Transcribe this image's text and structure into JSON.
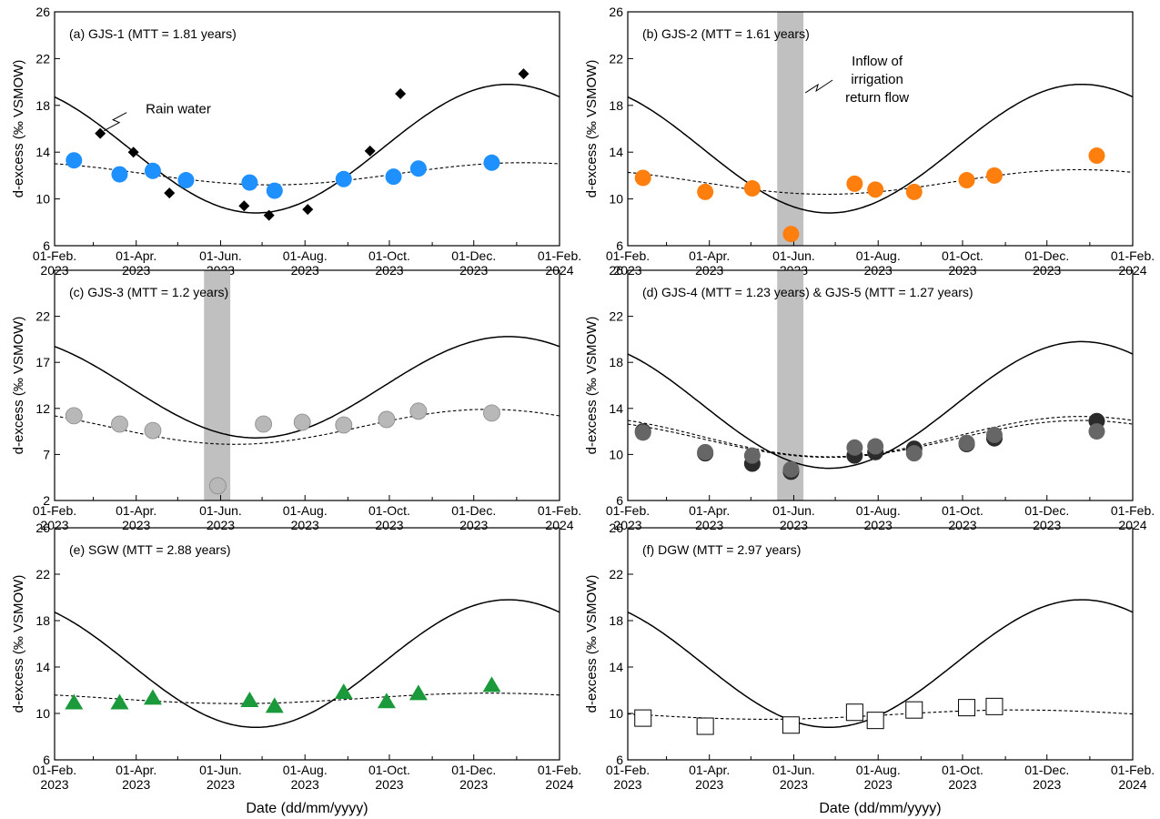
{
  "figure": {
    "shared_xlabel": "Date (dd/mm/yyyy)",
    "x_tick_labels": [
      [
        "01-Feb.",
        "2023"
      ],
      [
        "01-Apr.",
        "2023"
      ],
      [
        "01-Jun.",
        "2023"
      ],
      [
        "01-Aug.",
        "2023"
      ],
      [
        "01-Oct.",
        "2023"
      ],
      [
        "01-Dec.",
        "2023"
      ],
      [
        "01-Feb.",
        "2024"
      ]
    ],
    "ylabel": "d-excess (‰ VSMOW)",
    "rain_water_label": "Rain water",
    "inflow_label_lines": [
      "Inflow of",
      "irrigation",
      "return flow"
    ]
  },
  "chart_data": [
    {
      "type": "scatter",
      "title": "(a) GJS-1 (MTT = 1.81 years)",
      "xlabel": "",
      "ylabel": "d-excess (‰ VSMOW)",
      "xlim": [
        "2023-02-01",
        "2024-02-01"
      ],
      "ylim": [
        6,
        26
      ],
      "yticks": [
        6,
        10,
        14,
        18,
        22,
        26
      ],
      "annotation": "Rain water",
      "series": [
        {
          "marker": "diamond",
          "color": "#000000",
          "points": [
            [
              "2023-03-06",
              15.6
            ],
            [
              "2023-03-30",
              14.0
            ],
            [
              "2023-04-25",
              10.5
            ],
            [
              "2023-06-18",
              9.4
            ],
            [
              "2023-07-06",
              8.6
            ],
            [
              "2023-08-03",
              9.1
            ],
            [
              "2023-09-17",
              14.1
            ],
            [
              "2023-10-09",
              19.0
            ],
            [
              "2024-01-06",
              20.7
            ]
          ]
        },
        {
          "marker": "circle",
          "color": "#1e90ff",
          "points": [
            [
              "2023-02-15",
              13.3
            ],
            [
              "2023-03-20",
              12.1
            ],
            [
              "2023-04-13",
              12.4
            ],
            [
              "2023-05-07",
              11.6
            ],
            [
              "2023-06-22",
              11.4
            ],
            [
              "2023-07-10",
              10.7
            ],
            [
              "2023-08-29",
              11.7
            ],
            [
              "2023-10-04",
              11.9
            ],
            [
              "2023-10-22",
              12.6
            ],
            [
              "2023-12-14",
              13.1
            ]
          ]
        }
      ],
      "lines": [
        {
          "style": "solid",
          "mean": 14.3,
          "amplitude": 5.5,
          "peak": "2023-12-26"
        },
        {
          "style": "dashed",
          "mean": 12.15,
          "amplitude": 0.95,
          "peak": "2024-01-06"
        }
      ]
    },
    {
      "type": "scatter",
      "title": "(b) GJS-2 (MTT = 1.61 years)",
      "xlabel": "",
      "ylabel": "d-excess (‰ VSMOW)",
      "xlim": [
        "2023-02-01",
        "2024-02-01"
      ],
      "ylim": [
        6,
        26
      ],
      "yticks": [
        6,
        10,
        14,
        18,
        22,
        26
      ],
      "annotation": [
        "Inflow of",
        "irrigation",
        "return flow"
      ],
      "shaded_band": [
        "2023-05-20",
        "2023-06-08"
      ],
      "series": [
        {
          "marker": "circle",
          "color": "#ff7f0e",
          "points": [
            [
              "2023-02-12",
              11.8
            ],
            [
              "2023-03-29",
              10.6
            ],
            [
              "2023-05-02",
              10.9
            ],
            [
              "2023-05-30",
              7.0
            ],
            [
              "2023-07-15",
              11.3
            ],
            [
              "2023-07-30",
              10.8
            ],
            [
              "2023-08-27",
              10.6
            ],
            [
              "2023-10-04",
              11.6
            ],
            [
              "2023-10-24",
              12.0
            ],
            [
              "2024-01-06",
              13.7
            ]
          ]
        }
      ],
      "lines": [
        {
          "style": "solid",
          "mean": 14.3,
          "amplitude": 5.5,
          "peak": "2023-12-26"
        },
        {
          "style": "dashed",
          "mean": 11.45,
          "amplitude": 1.05,
          "peak": "2023-12-24"
        }
      ]
    },
    {
      "type": "scatter",
      "title": "(c) GJS-3 (MTT = 1.2 years)",
      "xlabel": "",
      "ylabel": "d-excess (‰ VSMOW)",
      "xlim": [
        "2023-02-01",
        "2024-02-01"
      ],
      "ylim": [
        2,
        27
      ],
      "yticks": [
        2,
        7,
        12,
        17,
        22
      ],
      "shaded_band": [
        "2023-05-20",
        "2023-06-08"
      ],
      "series": [
        {
          "marker": "circle",
          "color": "#b8b8b8",
          "points": [
            [
              "2023-02-15",
              11.2
            ],
            [
              "2023-03-20",
              10.3
            ],
            [
              "2023-04-13",
              9.6
            ],
            [
              "2023-05-30",
              3.6
            ],
            [
              "2023-07-02",
              10.3
            ],
            [
              "2023-07-30",
              10.5
            ],
            [
              "2023-08-29",
              10.2
            ],
            [
              "2023-09-29",
              10.8
            ],
            [
              "2023-10-22",
              11.7
            ],
            [
              "2023-12-14",
              11.5
            ]
          ]
        }
      ],
      "lines": [
        {
          "style": "solid",
          "mean": 14.3,
          "amplitude": 5.5,
          "peak": "2023-12-26"
        },
        {
          "style": "dashed",
          "mean": 10.0,
          "amplitude": 1.9,
          "peak": "2023-12-11"
        }
      ]
    },
    {
      "type": "scatter",
      "title": "(d) GJS-4 (MTT = 1.23 years) & GJS-5 (MTT = 1.27 years)",
      "xlabel": "",
      "ylabel": "d-excess (‰ VSMOW)",
      "xlim": [
        "2023-02-01",
        "2024-02-01"
      ],
      "ylim": [
        6,
        26
      ],
      "yticks": [
        6,
        10,
        14,
        18,
        22,
        26
      ],
      "shaded_band": [
        "2023-05-20",
        "2023-06-08"
      ],
      "series": [
        {
          "marker": "circle",
          "color": "#2b2b2b",
          "points": [
            [
              "2023-02-12",
              12.0
            ],
            [
              "2023-03-29",
              10.1
            ],
            [
              "2023-05-02",
              9.2
            ],
            [
              "2023-05-30",
              8.5
            ],
            [
              "2023-07-15",
              9.9
            ],
            [
              "2023-07-30",
              10.2
            ],
            [
              "2023-08-27",
              10.5
            ],
            [
              "2023-10-04",
              10.9
            ],
            [
              "2023-10-24",
              11.4
            ],
            [
              "2024-01-06",
              12.9
            ]
          ]
        },
        {
          "marker": "circle",
          "color": "#666666",
          "points": [
            [
              "2023-02-12",
              11.9
            ],
            [
              "2023-03-29",
              10.2
            ],
            [
              "2023-05-02",
              9.9
            ],
            [
              "2023-05-30",
              8.7
            ],
            [
              "2023-07-15",
              10.6
            ],
            [
              "2023-07-30",
              10.7
            ],
            [
              "2023-08-27",
              10.1
            ],
            [
              "2023-10-04",
              11.0
            ],
            [
              "2023-10-24",
              11.7
            ],
            [
              "2024-01-06",
              12.0
            ]
          ]
        }
      ],
      "lines": [
        {
          "style": "solid",
          "mean": 14.3,
          "amplitude": 5.5,
          "peak": "2023-12-26"
        },
        {
          "style": "dashed",
          "mean": 11.55,
          "amplitude": 1.75,
          "peak": "2023-12-26"
        },
        {
          "style": "dashed",
          "mean": 11.35,
          "amplitude": 1.6,
          "peak": "2023-12-26"
        }
      ]
    },
    {
      "type": "scatter",
      "title": "(e) SGW (MTT = 2.88 years)",
      "xlabel": "Date (dd/mm/yyyy)",
      "ylabel": "d-excess (‰ VSMOW)",
      "xlim": [
        "2023-02-01",
        "2024-02-01"
      ],
      "ylim": [
        6,
        26
      ],
      "yticks": [
        6,
        10,
        14,
        18,
        22,
        26
      ],
      "series": [
        {
          "marker": "triangle",
          "color": "#1a9a3a",
          "points": [
            [
              "2023-02-15",
              10.9
            ],
            [
              "2023-03-20",
              10.9
            ],
            [
              "2023-04-13",
              11.3
            ],
            [
              "2023-06-22",
              11.1
            ],
            [
              "2023-07-10",
              10.6
            ],
            [
              "2023-08-29",
              11.8
            ],
            [
              "2023-09-29",
              11.0
            ],
            [
              "2023-10-22",
              11.7
            ],
            [
              "2023-12-14",
              12.4
            ]
          ]
        }
      ],
      "lines": [
        {
          "style": "solid",
          "mean": 14.3,
          "amplitude": 5.5,
          "peak": "2023-12-26"
        },
        {
          "style": "dashed",
          "mean": 11.3,
          "amplitude": 0.45,
          "peak": "2023-12-12"
        }
      ]
    },
    {
      "type": "scatter",
      "title": "(f) DGW (MTT = 2.97 years)",
      "xlabel": "Date (dd/mm/yyyy)",
      "ylabel": "d-excess (‰ VSMOW)",
      "xlim": [
        "2023-02-01",
        "2024-02-01"
      ],
      "ylim": [
        6,
        26
      ],
      "yticks": [
        6,
        10,
        14,
        18,
        22,
        26
      ],
      "series": [
        {
          "marker": "square",
          "color": "#ffffff",
          "points": [
            [
              "2023-02-12",
              9.6
            ],
            [
              "2023-03-29",
              8.9
            ],
            [
              "2023-05-30",
              9.0
            ],
            [
              "2023-07-15",
              10.1
            ],
            [
              "2023-07-30",
              9.4
            ],
            [
              "2023-08-27",
              10.3
            ],
            [
              "2023-10-04",
              10.5
            ],
            [
              "2023-10-24",
              10.6
            ]
          ]
        }
      ],
      "lines": [
        {
          "style": "solid",
          "mean": 14.3,
          "amplitude": 5.5,
          "peak": "2023-12-26"
        },
        {
          "style": "dashed",
          "mean": 9.9,
          "amplitude": 0.4,
          "peak": "2023-11-10"
        }
      ]
    }
  ]
}
